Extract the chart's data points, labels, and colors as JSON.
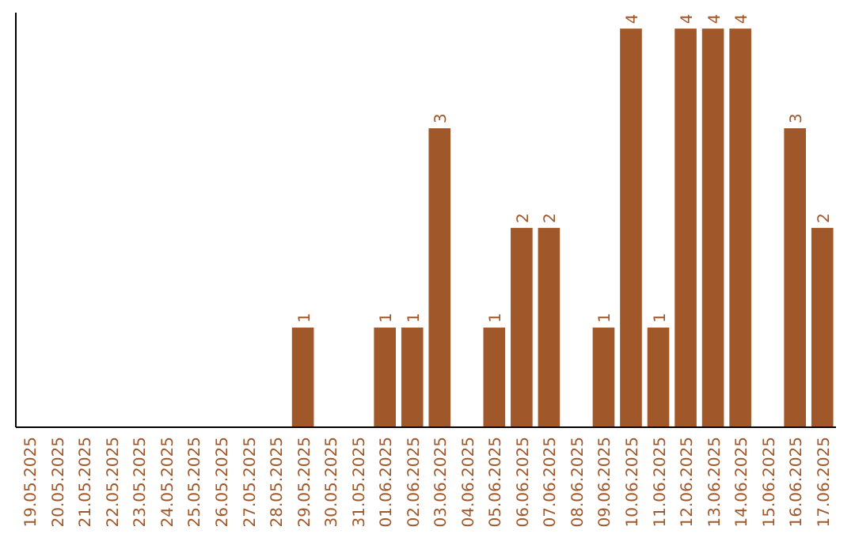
{
  "chart_data": {
    "type": "bar",
    "categories": [
      "19.05.2025",
      "20.05.2025",
      "21.05.2025",
      "22.05.2025",
      "23.05.2025",
      "24.05.2025",
      "25.05.2025",
      "26.05.2025",
      "27.05.2025",
      "28.05.2025",
      "29.05.2025",
      "30.05.2025",
      "31.05.2025",
      "01.06.2025",
      "02.06.2025",
      "03.06.2025",
      "04.06.2025",
      "05.06.2025",
      "06.06.2025",
      "07.06.2025",
      "08.06.2025",
      "09.06.2025",
      "10.06.2025",
      "11.06.2025",
      "12.06.2025",
      "13.06.2025",
      "14.06.2025",
      "15.06.2025",
      "16.06.2025",
      "17.06.2025"
    ],
    "values": [
      0,
      0,
      0,
      0,
      0,
      0,
      0,
      0,
      0,
      0,
      1,
      0,
      0,
      1,
      1,
      3,
      0,
      1,
      2,
      2,
      0,
      1,
      4,
      1,
      4,
      4,
      4,
      0,
      3,
      2
    ],
    "value_labels": [
      null,
      null,
      null,
      null,
      null,
      null,
      null,
      null,
      null,
      null,
      "1",
      null,
      null,
      "1",
      "1",
      "3",
      null,
      "1",
      "2",
      "2",
      null,
      "1",
      "4",
      "1",
      "4",
      "4",
      "4",
      null,
      "3",
      "2"
    ],
    "color": "#a0582a",
    "tick_labels": "x"
  }
}
